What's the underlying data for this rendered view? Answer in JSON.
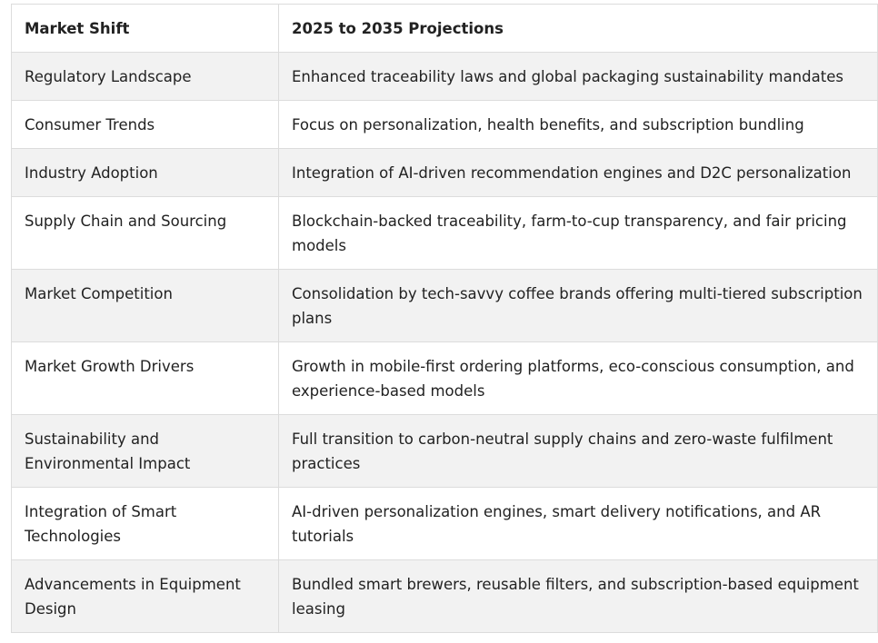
{
  "table": {
    "headers": [
      "Market Shift",
      "2025 to 2035 Projections"
    ],
    "rows": [
      [
        "Regulatory Landscape",
        "Enhanced traceability laws and global packaging sustainability mandates"
      ],
      [
        "Consumer Trends",
        "Focus on personalization, health benefits, and subscription bundling"
      ],
      [
        "Industry Adoption",
        "Integration of AI-driven recommendation engines and D2C personalization"
      ],
      [
        "Supply Chain and Sourcing",
        "Blockchain-backed traceability, farm-to-cup transparency, and fair pricing models"
      ],
      [
        "Market Competition",
        "Consolidation by tech-savvy coffee brands offering multi-tiered subscription plans"
      ],
      [
        "Market Growth Drivers",
        "Growth in mobile-first ordering platforms, eco-conscious consumption, and experience-based models"
      ],
      [
        "Sustainability and Environmental Impact",
        "Full transition to carbon-neutral supply chains and zero-waste fulfilment practices"
      ],
      [
        "Integration of Smart Technologies",
        "AI-driven personalization engines, smart delivery notifications, and AR tutorials"
      ],
      [
        "Advancements in Equipment Design",
        "Bundled smart brewers, reusable filters, and subscription-based equipment leasing"
      ]
    ]
  }
}
